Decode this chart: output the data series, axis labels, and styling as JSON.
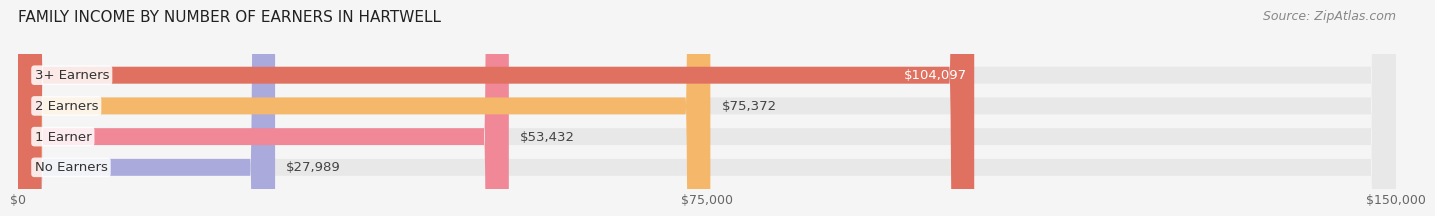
{
  "title": "FAMILY INCOME BY NUMBER OF EARNERS IN HARTWELL",
  "source": "Source: ZipAtlas.com",
  "categories": [
    "No Earners",
    "1 Earner",
    "2 Earners",
    "3+ Earners"
  ],
  "values": [
    27989,
    53432,
    75372,
    104097
  ],
  "labels": [
    "$27,989",
    "$53,432",
    "$75,372",
    "$104,097"
  ],
  "bar_colors": [
    "#aaaadd",
    "#f08898",
    "#f5b86a",
    "#e07060"
  ],
  "bar_bg_color": "#e8e8e8",
  "label_colors": [
    "#555555",
    "#555555",
    "#555555",
    "#ffffff"
  ],
  "xmax": 150000,
  "xticks": [
    0,
    75000,
    150000
  ],
  "xticklabels": [
    "$0",
    "$75,000",
    "$150,000"
  ],
  "fig_bg_color": "#f5f5f5",
  "title_fontsize": 11,
  "source_fontsize": 9,
  "bar_height": 0.55,
  "bar_label_fontsize": 9.5
}
